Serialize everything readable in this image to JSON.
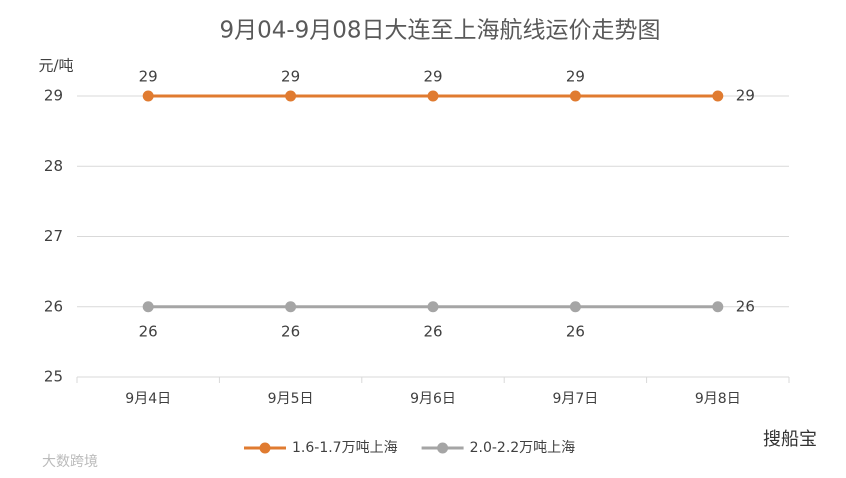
{
  "chart_data": {
    "type": "line",
    "title": "9月04-9月08日大连至上海航线运价走势图",
    "y_label": "元/吨",
    "categories": [
      "9月4日",
      "9月5日",
      "9月6日",
      "9月7日",
      "9月8日"
    ],
    "series": [
      {
        "name": "1.6-1.7万吨上海",
        "color": "#e07b30",
        "values": [
          29,
          29,
          29,
          29,
          29
        ]
      },
      {
        "name": "2.0-2.2万吨上海",
        "color": "#a5a5a5",
        "values": [
          26,
          26,
          26,
          26,
          26
        ]
      }
    ],
    "ylim": [
      25,
      29
    ],
    "yticks": [
      25,
      26,
      27,
      28,
      29
    ],
    "grid": true,
    "legend": "bottom",
    "annotations": [
      "大数跨境",
      "搜船宝"
    ]
  }
}
